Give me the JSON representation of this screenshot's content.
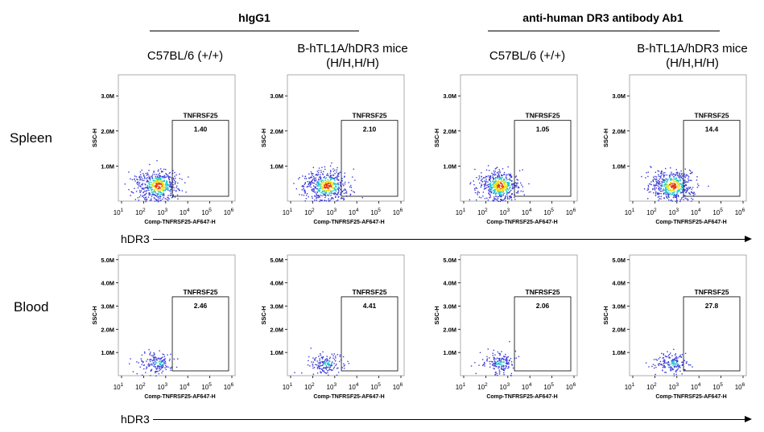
{
  "groups": [
    {
      "label": "hIgG1"
    },
    {
      "label": "anti-human DR3 antibody Ab1"
    }
  ],
  "columns": [
    {
      "title_line1": "C57BL/6 (+/+)",
      "title_line2": ""
    },
    {
      "title_line1": "B-hTL1A/hDR3 mice",
      "title_line2": "(H/H,H/H)"
    },
    {
      "title_line1": "C57BL/6 (+/+)",
      "title_line2": ""
    },
    {
      "title_line1": "B-hTL1A/hDR3 mice",
      "title_line2": "(H/H,H/H)"
    }
  ],
  "rows": [
    {
      "label": "Spleen"
    },
    {
      "label": "Blood"
    }
  ],
  "arrow_label": "hDR3",
  "colors": {
    "density_low": "#3a3ad8",
    "density_mid": "#18c8c8",
    "density_high": "#f0e000",
    "density_peak": "#e83010"
  },
  "chart_data": {
    "type": "scatter",
    "xlabel": "Comp-TNFRSF25-AF647-H",
    "ylabel": "SSC-H",
    "x_ticks": [
      {
        "base": "10",
        "exp": "1"
      },
      {
        "base": "10",
        "exp": "2"
      },
      {
        "base": "10",
        "exp": "3"
      },
      {
        "base": "10",
        "exp": "4"
      },
      {
        "base": "10",
        "exp": "5"
      },
      {
        "base": "10",
        "exp": "6"
      }
    ],
    "x_log_range": [
      1,
      6
    ],
    "y_ticks_by_row": [
      [
        "1.0M",
        "2.0M",
        "3.0M"
      ],
      [
        "1.0M",
        "2.0M",
        "3.0M",
        "4.0M",
        "5.0M"
      ]
    ],
    "y_max_by_row": [
      3.6,
      5.2
    ],
    "gate_name": "TNFRSF25",
    "gate": {
      "x_log_min": 3.3,
      "x_log_max": 6.0
    },
    "gate_top_by_row": [
      2.3,
      3.4
    ],
    "gate_values": [
      [
        "1.40",
        "2.10",
        "1.05",
        "14.4"
      ],
      [
        "2.46",
        "4.41",
        "2.06",
        "27.8"
      ]
    ]
  }
}
